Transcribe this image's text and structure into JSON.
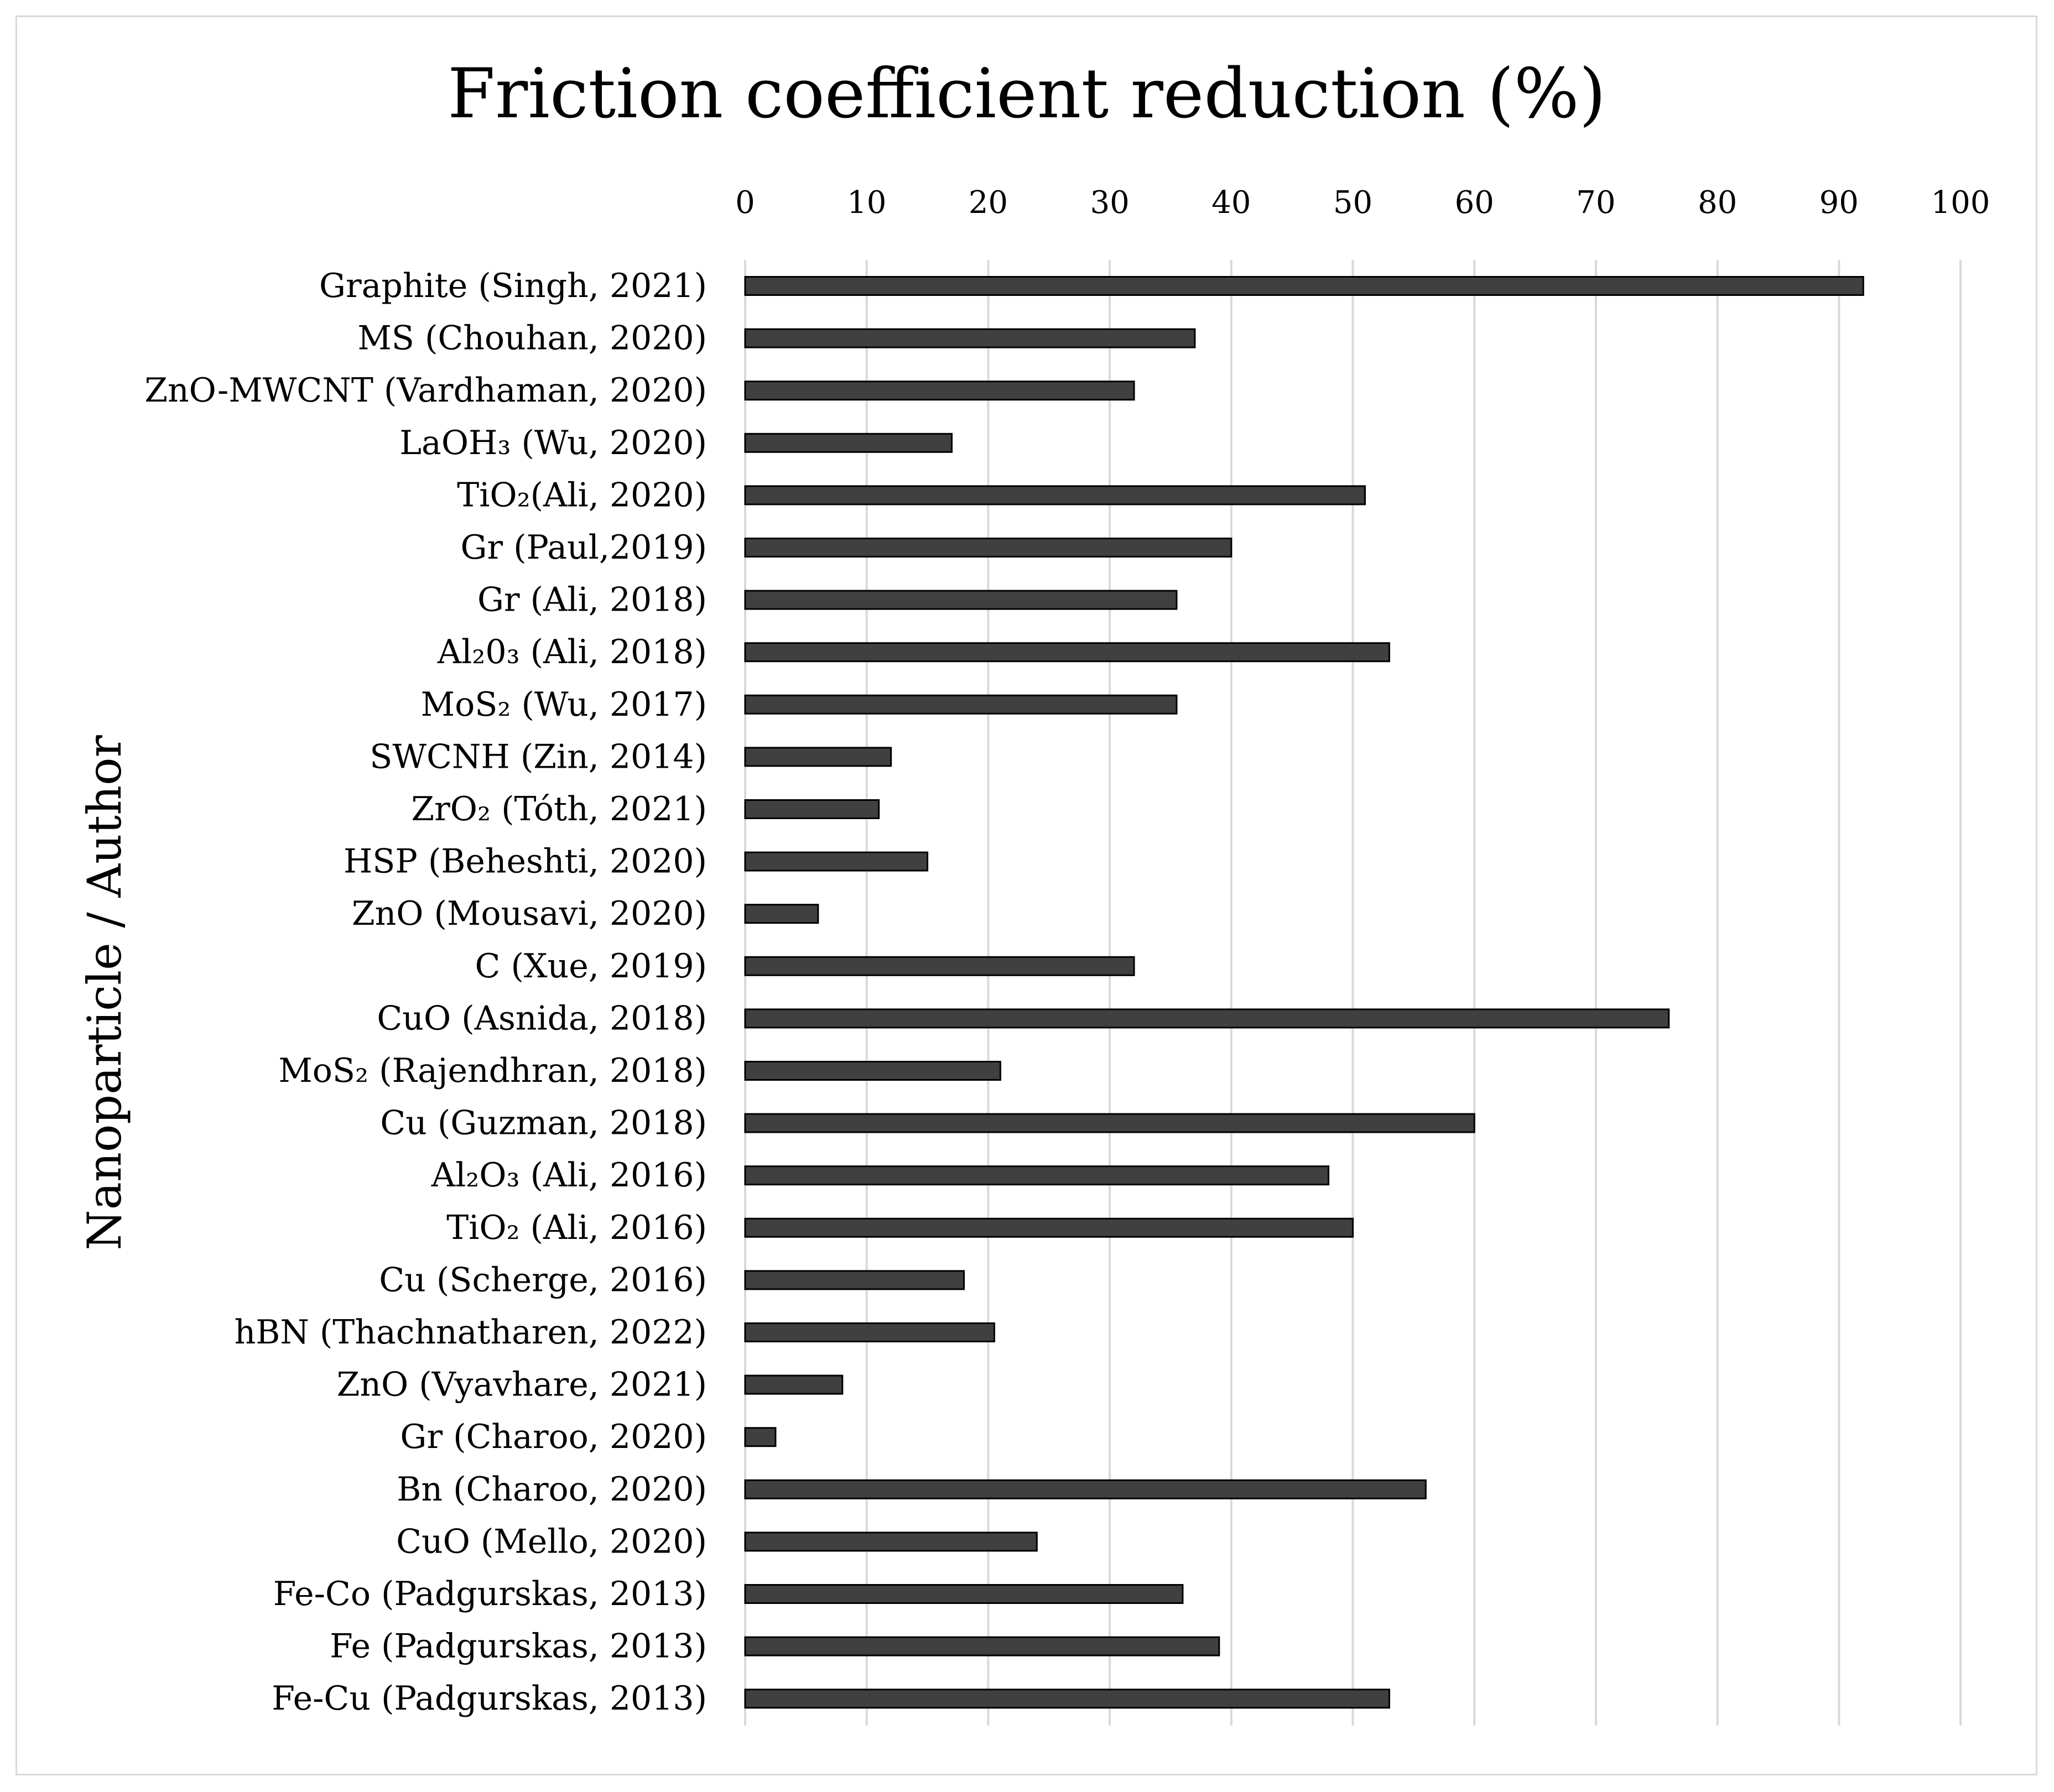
{
  "chart_data": {
    "type": "bar",
    "orientation": "horizontal",
    "title": "Friction coefficient reduction (%)",
    "xlabel": "",
    "ylabel": "Nanoparticle / Author",
    "xlim": [
      0,
      100
    ],
    "xticks": [
      0,
      10,
      20,
      30,
      40,
      50,
      60,
      70,
      80,
      90,
      100
    ],
    "x_axis_position": "top",
    "grid": "vertical",
    "legend": "none",
    "bar_color": "#404040",
    "categories": [
      "Graphite (Singh, 2021)",
      "MS (Chouhan, 2020)",
      "ZnO-MWCNT (Vardhaman, 2020)",
      "LaOH₃ (Wu, 2020)",
      "TiO₂(Ali, 2020)",
      "Gr (Paul,2019)",
      "Gr (Ali, 2018)",
      "Al₂0₃ (Ali, 2018)",
      "MoS₂ (Wu, 2017)",
      "SWCNH (Zin, 2014)",
      "ZrO₂ (Tóth, 2021)",
      "HSP (Beheshti, 2020)",
      "ZnO (Mousavi, 2020)",
      "C (Xue, 2019)",
      "CuO (Asnida, 2018)",
      "MoS₂ (Rajendhran, 2018)",
      "Cu (Guzman, 2018)",
      "Al₂O₃ (Ali, 2016)",
      "TiO₂ (Ali, 2016)",
      "Cu (Scherge, 2016)",
      "hBN (Thachnatharen, 2022)",
      "ZnO (Vyavhare, 2021)",
      "Gr (Charoo, 2020)",
      "Bn (Charoo, 2020)",
      "CuO (Mello, 2020)",
      "Fe-Co (Padgurskas, 2013)",
      "Fe (Padgurskas, 2013)",
      "Fe-Cu (Padgurskas, 2013)"
    ],
    "values": [
      92,
      37,
      32,
      17,
      51,
      40,
      35.5,
      53,
      35.5,
      12,
      11,
      15,
      6,
      32,
      76,
      21,
      60,
      48,
      50,
      18,
      20.5,
      8,
      2.5,
      56,
      24,
      36,
      39,
      53
    ]
  }
}
